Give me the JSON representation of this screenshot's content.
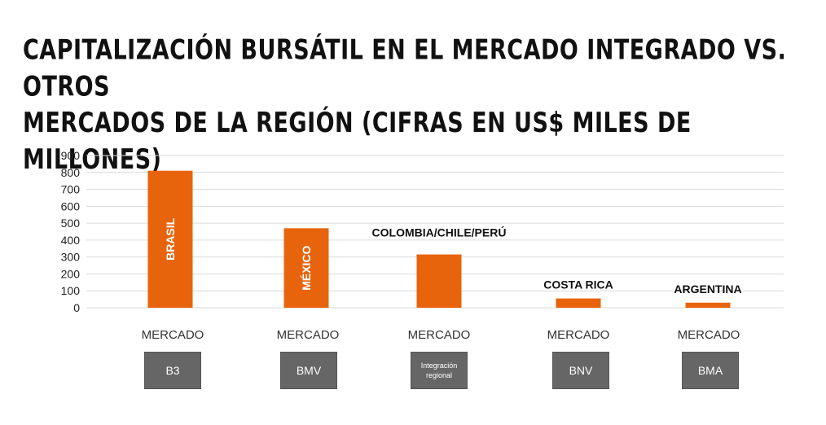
{
  "title": {
    "line1": "CAPITALIZACIÓN BURSÁTIL EN EL MERCADO INTEGRADO VS. OTROS",
    "line2": "MERCADOS DE LA REGIÓN (CIFRAS EN US$ MILES DE MILLONES)"
  },
  "colors": {
    "bar": "#e8640c",
    "grid": "#d9d9d9",
    "box": "#666666"
  },
  "chart_data": {
    "type": "bar",
    "title": "CAPITALIZACIÓN BURSÁTIL EN EL MERCADO INTEGRADO VS. OTROS MERCADOS DE LA REGIÓN (CIFRAS EN US$ MILES DE MILLONES)",
    "ylim": [
      0,
      900
    ],
    "yticks": [
      0,
      100,
      200,
      300,
      400,
      500,
      600,
      700,
      800,
      900
    ],
    "grid": true,
    "categories": [
      "BRASIL",
      "MÉXICO",
      "COLOMBIA/CHILE/PERÚ",
      "COSTA RICA",
      "ARGENTINA"
    ],
    "values": [
      810,
      470,
      315,
      55,
      30
    ],
    "label_position": [
      "inside",
      "inside",
      "above",
      "above",
      "above"
    ]
  },
  "markets": [
    {
      "label": "MERCADO",
      "box": "B3"
    },
    {
      "label": "MERCADO",
      "box": "BMV"
    },
    {
      "label": "MERCADO",
      "box": "Integración regional"
    },
    {
      "label": "MERCADO",
      "box": "BNV"
    },
    {
      "label": "MERCADO",
      "box": "BMA"
    }
  ]
}
